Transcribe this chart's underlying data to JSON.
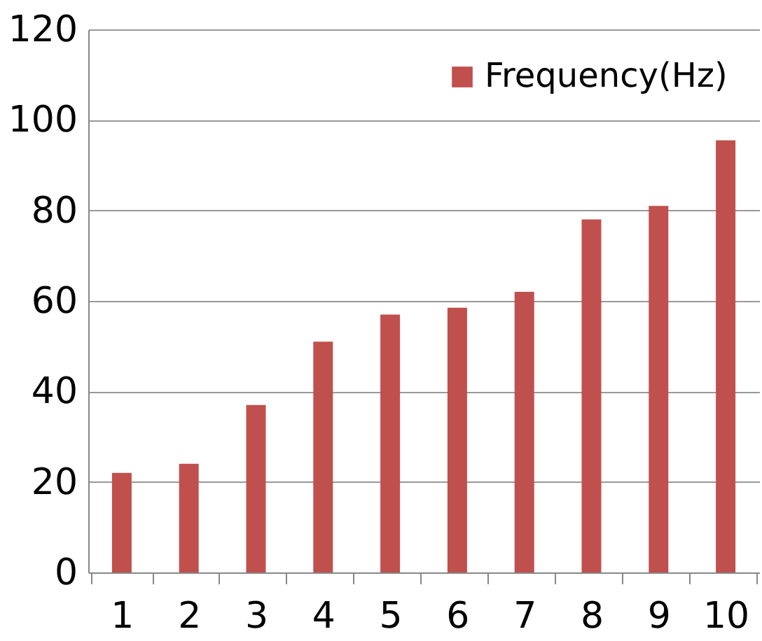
{
  "chart_data": {
    "type": "bar",
    "categories": [
      "1",
      "2",
      "3",
      "4",
      "5",
      "6",
      "7",
      "8",
      "9",
      "10"
    ],
    "series": [
      {
        "name": "Frequency(Hz)",
        "color": "#c0504d",
        "values": [
          22,
          24,
          37,
          51,
          57,
          58.5,
          62,
          78,
          81,
          95.5
        ]
      }
    ],
    "ylim": [
      0,
      120
    ],
    "yticks": [
      0,
      20,
      40,
      60,
      80,
      100,
      120
    ],
    "grid": "y",
    "legend": "top right"
  }
}
